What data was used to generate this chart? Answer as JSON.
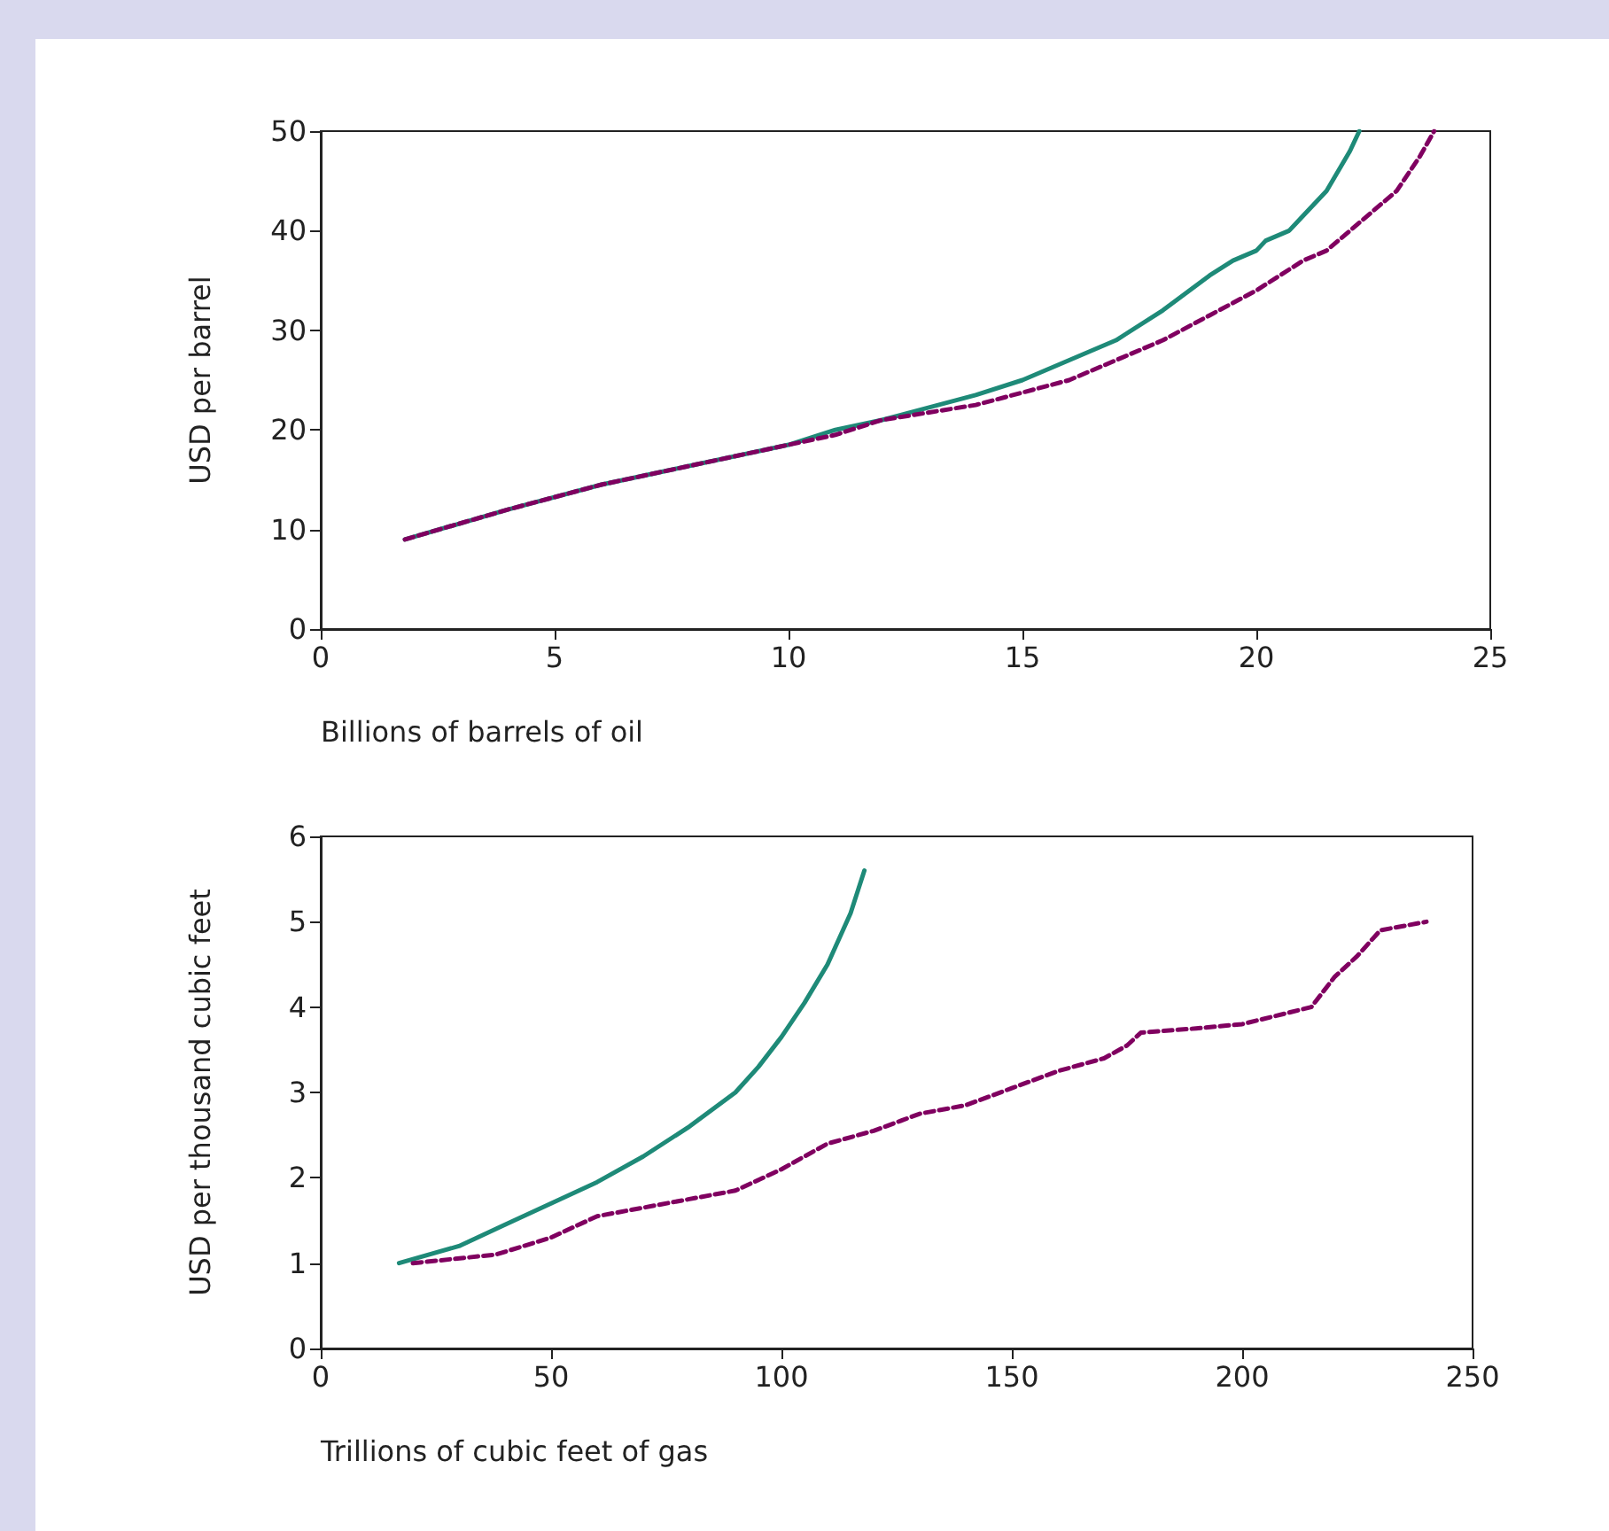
{
  "chart_data": [
    {
      "type": "line",
      "xlabel": "Billions of barrels of oil",
      "ylabel": "USD per barrel",
      "xlim": [
        0,
        25
      ],
      "xticks": [
        0,
        5,
        10,
        15,
        20,
        25
      ],
      "ylim": [
        0,
        50
      ],
      "yticks": [
        0,
        10,
        20,
        30,
        40,
        50
      ],
      "marker": "none",
      "series": [
        {
          "color": "#1e8a78",
          "line_style": "solid",
          "x": [
            1.8,
            4,
            6,
            8,
            10,
            11,
            12,
            14,
            15,
            16,
            17,
            18,
            19,
            19.5,
            20,
            20.2,
            20.7,
            21,
            21.5,
            22,
            22.2
          ],
          "values": [
            9,
            12,
            14.5,
            16.5,
            18.5,
            20,
            21,
            23.5,
            25,
            27,
            29,
            32,
            35.5,
            37,
            38,
            39,
            40,
            41.5,
            44,
            48,
            50
          ]
        },
        {
          "color": "#800060",
          "line_style": "dashed",
          "x": [
            1.8,
            4,
            6,
            8,
            10,
            11,
            12,
            14,
            16,
            17,
            18,
            19,
            20,
            20.5,
            21,
            21.5,
            22,
            22.5,
            23,
            23.5,
            23.8
          ],
          "values": [
            9,
            12,
            14.5,
            16.5,
            18.5,
            19.5,
            21,
            22.5,
            25,
            27,
            29,
            31.5,
            34,
            35.5,
            37,
            38,
            40,
            42,
            44,
            47.5,
            50
          ]
        }
      ]
    },
    {
      "type": "line",
      "xlabel": "Trillions of cubic feet of gas",
      "ylabel": "USD per thousand cubic feet",
      "xlim": [
        0,
        250
      ],
      "xticks": [
        0,
        50,
        100,
        150,
        200,
        250
      ],
      "ylim": [
        0,
        6
      ],
      "yticks": [
        0,
        1,
        2,
        3,
        4,
        5,
        6
      ],
      "marker": "none",
      "series": [
        {
          "color": "#1e8a78",
          "line_style": "solid",
          "x": [
            17,
            30,
            40,
            50,
            60,
            70,
            80,
            90,
            95,
            100,
            105,
            110,
            115,
            118
          ],
          "values": [
            1,
            1.2,
            1.45,
            1.7,
            1.95,
            2.25,
            2.6,
            3.0,
            3.3,
            3.65,
            4.05,
            4.5,
            5.1,
            5.6
          ]
        },
        {
          "color": "#800060",
          "line_style": "dashed",
          "x": [
            20,
            38,
            50,
            60,
            70,
            80,
            90,
            100,
            110,
            120,
            130,
            140,
            150,
            160,
            170,
            175,
            178,
            190,
            200,
            215,
            220,
            225,
            230,
            240
          ],
          "values": [
            1,
            1.1,
            1.3,
            1.55,
            1.65,
            1.75,
            1.85,
            2.1,
            2.4,
            2.55,
            2.75,
            2.85,
            3.05,
            3.25,
            3.4,
            3.55,
            3.7,
            3.75,
            3.8,
            4.0,
            4.35,
            4.6,
            4.9,
            5.0
          ]
        }
      ]
    }
  ]
}
